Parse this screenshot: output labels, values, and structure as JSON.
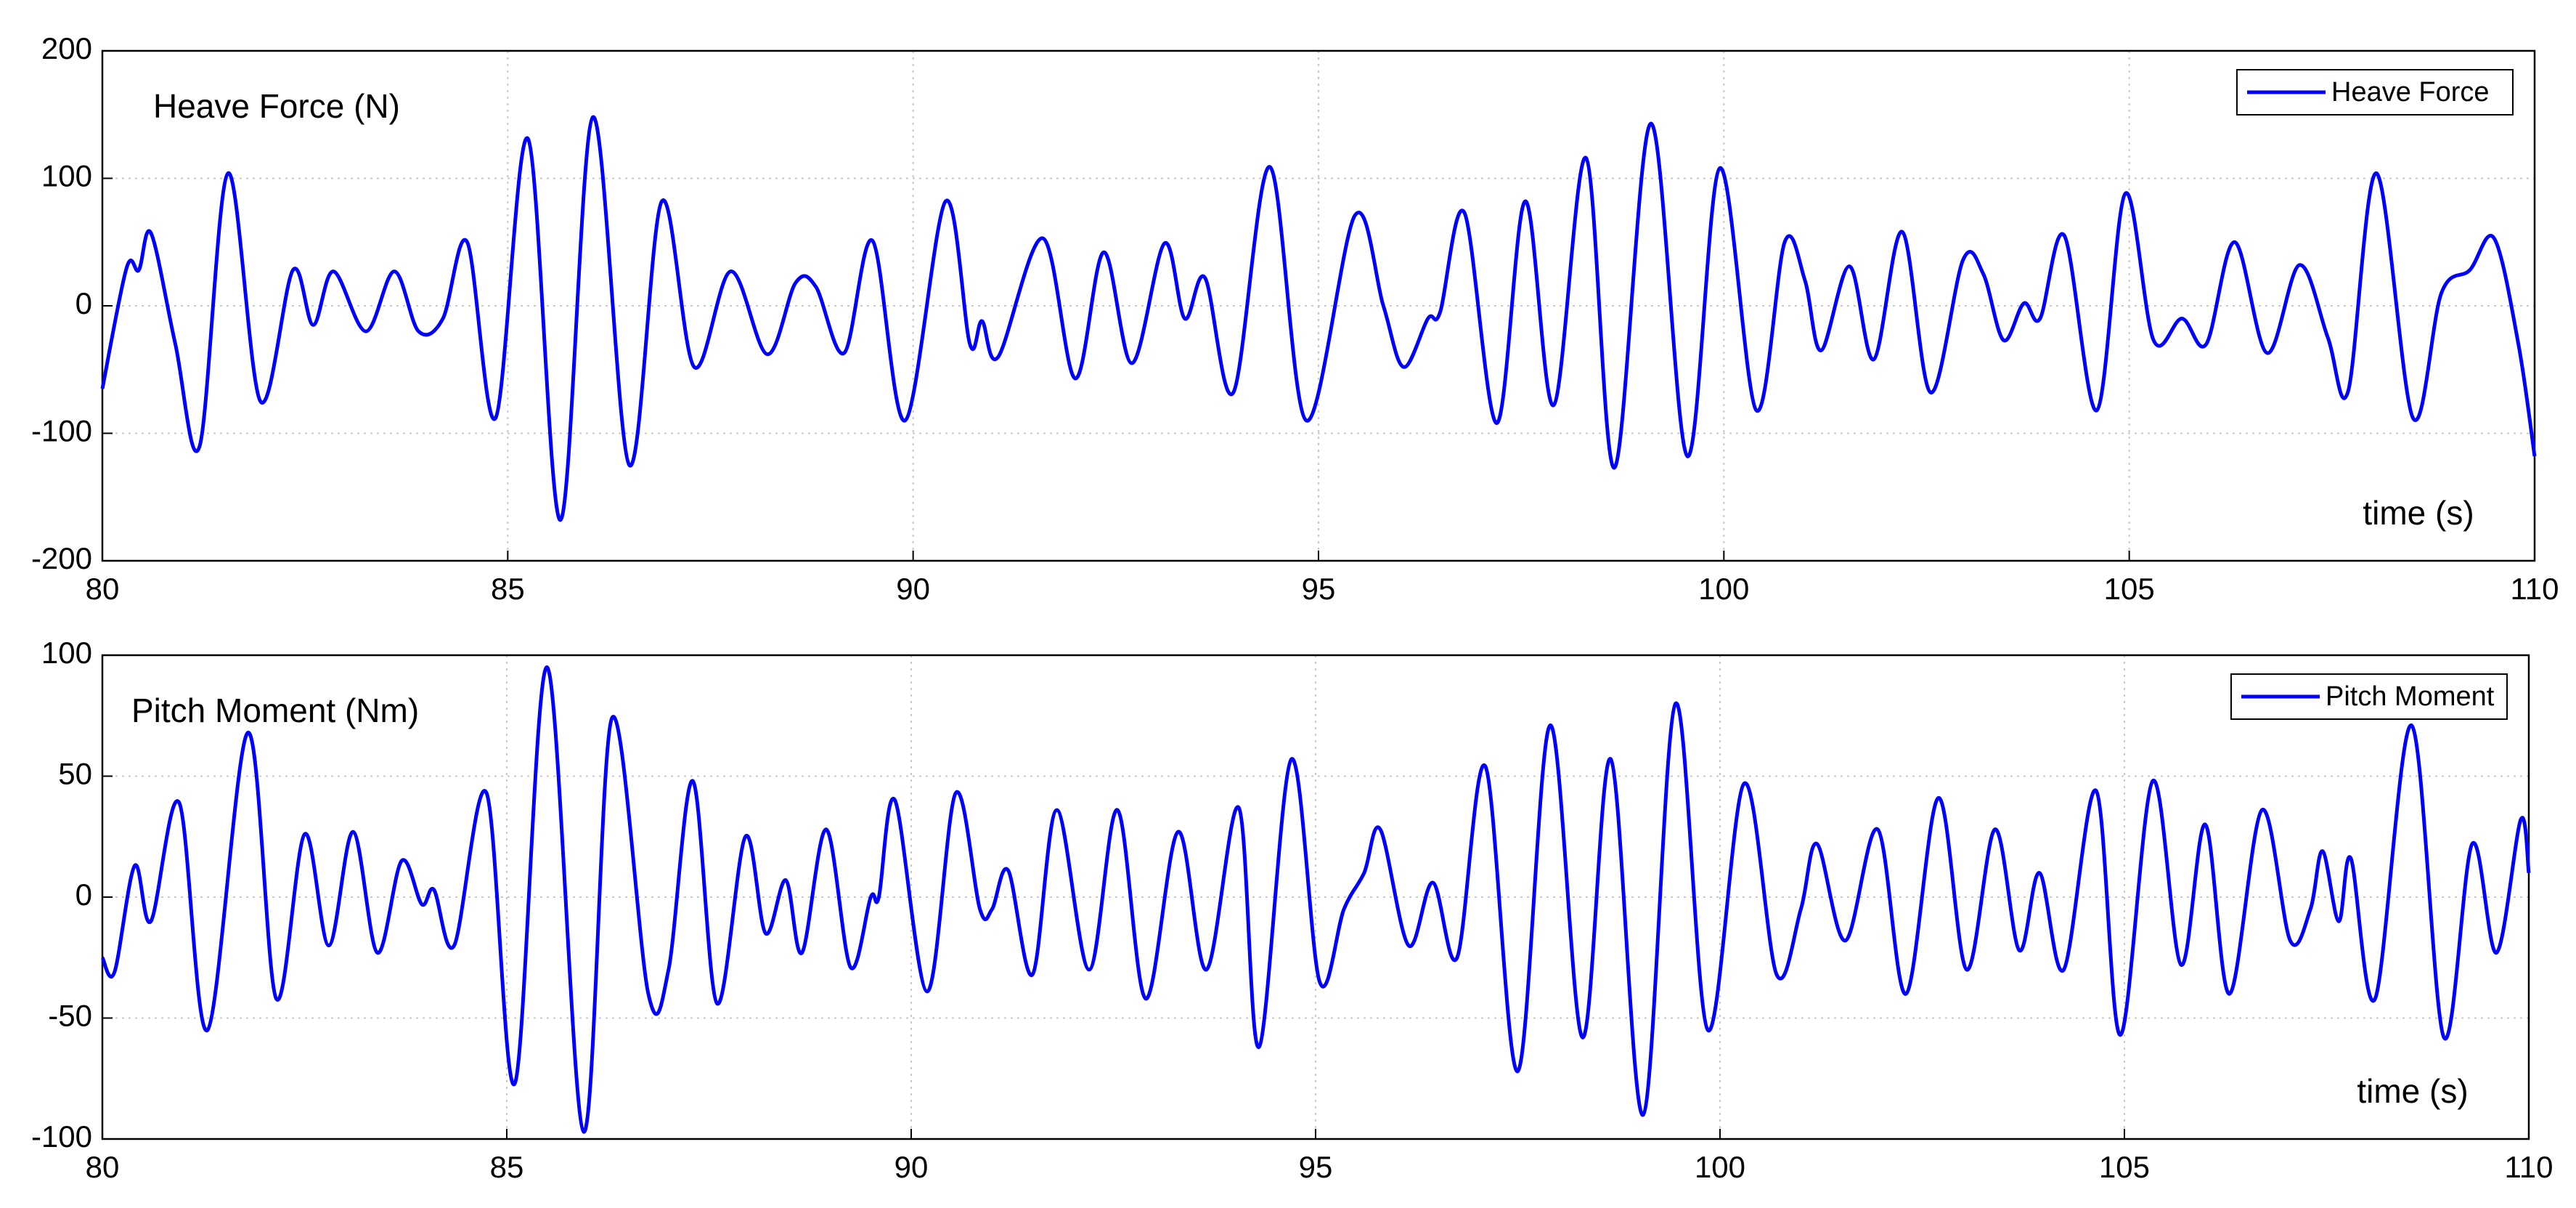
{
  "chart_data": [
    {
      "type": "line",
      "title": "Heave Force (N)",
      "xlabel": "time (s)",
      "x": [
        80.0,
        80.3,
        80.45,
        80.6,
        80.9,
        81.2,
        81.55,
        81.95,
        82.35,
        82.6,
        82.85,
        83.25,
        83.6,
        83.9,
        84.2,
        84.5,
        84.85,
        85.25,
        85.65,
        86.05,
        86.5,
        86.9,
        87.3,
        87.75,
        88.2,
        88.55,
        88.8,
        89.15,
        89.5,
        89.9,
        90.4,
        90.7,
        90.85,
        91.05,
        91.6,
        92.0,
        92.35,
        92.7,
        93.1,
        93.35,
        93.6,
        93.95,
        94.4,
        94.85,
        95.45,
        95.8,
        96.05,
        96.35,
        96.5,
        96.8,
        97.2,
        97.55,
        97.9,
        98.3,
        98.65,
        99.1,
        99.55,
        99.95,
        100.4,
        100.75,
        101.0,
        101.2,
        101.55,
        101.85,
        102.2,
        102.55,
        102.95,
        103.2,
        103.45,
        103.7,
        103.9,
        104.2,
        104.6,
        104.95,
        105.3,
        105.65,
        105.95,
        106.3,
        106.7,
        107.1,
        107.45,
        107.7,
        108.05,
        108.5,
        108.85,
        109.2,
        109.5,
        109.8,
        110.0
      ],
      "series": [
        {
          "name": "Heave Force",
          "color": "#0000ff",
          "values": [
            -65,
            30,
            28,
            57,
            -30,
            -110,
            104,
            -75,
            28,
            -15,
            27,
            -20,
            27,
            -20,
            -10,
            50,
            -88,
            131,
            -168,
            148,
            -125,
            82,
            -48,
            27,
            -38,
            18,
            15,
            -37,
            51,
            -90,
            82,
            -30,
            -12,
            -40,
            53,
            -57,
            42,
            -45,
            49,
            -10,
            22,
            -68,
            109,
            -90,
            71,
            0,
            -48,
            -10,
            -5,
            73,
            -92,
            82,
            -78,
            116,
            -127,
            143,
            -118,
            108,
            -82,
            50,
            20,
            -35,
            31,
            -42,
            58,
            -68,
            36,
            25,
            -27,
            2,
            -10,
            55,
            -82,
            88,
            -27,
            -10,
            -30,
            50,
            -37,
            32,
            -25,
            -67,
            104,
            -88,
            10,
            28,
            53,
            -30,
            -118
          ]
        }
      ],
      "xlim": [
        80,
        110
      ],
      "ylim": [
        -200,
        200
      ],
      "xticks": [
        80,
        85,
        90,
        95,
        100,
        105,
        110
      ],
      "yticks": [
        -200,
        -100,
        0,
        100,
        200
      ],
      "grid": true,
      "legend": "upper right"
    },
    {
      "type": "line",
      "title": "Pitch Moment (Nm)",
      "xlabel": "time (s)",
      "x": [
        80.0,
        80.15,
        80.4,
        80.6,
        80.95,
        81.3,
        81.8,
        82.15,
        82.5,
        82.8,
        83.1,
        83.4,
        83.7,
        83.95,
        84.1,
        84.35,
        84.75,
        85.1,
        85.5,
        85.95,
        86.3,
        86.75,
        87.0,
        87.3,
        87.6,
        87.95,
        88.2,
        88.45,
        88.65,
        88.95,
        89.25,
        89.5,
        89.6,
        89.8,
        90.2,
        90.55,
        90.85,
        91.0,
        91.2,
        91.5,
        91.8,
        92.2,
        92.55,
        92.9,
        93.3,
        93.65,
        94.05,
        94.3,
        94.7,
        95.05,
        95.35,
        95.6,
        95.8,
        96.15,
        96.45,
        96.75,
        97.1,
        97.5,
        97.9,
        98.3,
        98.65,
        99.05,
        99.45,
        99.85,
        100.3,
        100.7,
        101.0,
        101.2,
        101.55,
        101.95,
        102.3,
        102.7,
        103.05,
        103.4,
        103.7,
        103.95,
        104.25,
        104.65,
        104.95,
        105.35,
        105.7,
        106.0,
        106.3,
        106.7,
        107.05,
        107.3,
        107.45,
        107.65,
        107.8,
        108.1,
        108.55,
        108.95,
        109.3,
        109.6,
        109.9,
        110.0
      ],
      "series": [
        {
          "name": "Pitch Moment",
          "color": "#0000ff",
          "values": [
            -25,
            -31,
            13,
            -10,
            39,
            -55,
            68,
            -42,
            26,
            -20,
            27,
            -23,
            15,
            -3,
            3,
            -20,
            43,
            -77,
            95,
            -97,
            74,
            -40,
            -30,
            48,
            -44,
            25,
            -15,
            7,
            -23,
            28,
            -29,
            0,
            0,
            40,
            -39,
            43,
            -5,
            -5,
            11,
            -32,
            36,
            -30,
            36,
            -42,
            27,
            -30,
            37,
            -62,
            57,
            -35,
            -5,
            10,
            28,
            -20,
            6,
            -25,
            54,
            -72,
            71,
            -58,
            57,
            -90,
            80,
            -55,
            47,
            -32,
            -5,
            22,
            -18,
            28,
            -40,
            41,
            -30,
            28,
            -22,
            10,
            -30,
            44,
            -57,
            48,
            -28,
            30,
            -40,
            36,
            -18,
            -5,
            19,
            -10,
            16,
            -42,
            71,
            -58,
            22,
            -23,
            32,
            10
          ]
        }
      ],
      "xlim": [
        80,
        110
      ],
      "ylim": [
        -100,
        100
      ],
      "xticks": [
        80,
        85,
        90,
        95,
        100,
        105,
        110
      ],
      "yticks": [
        -100,
        -50,
        0,
        50,
        100
      ],
      "grid": true,
      "legend": "upper right"
    }
  ]
}
